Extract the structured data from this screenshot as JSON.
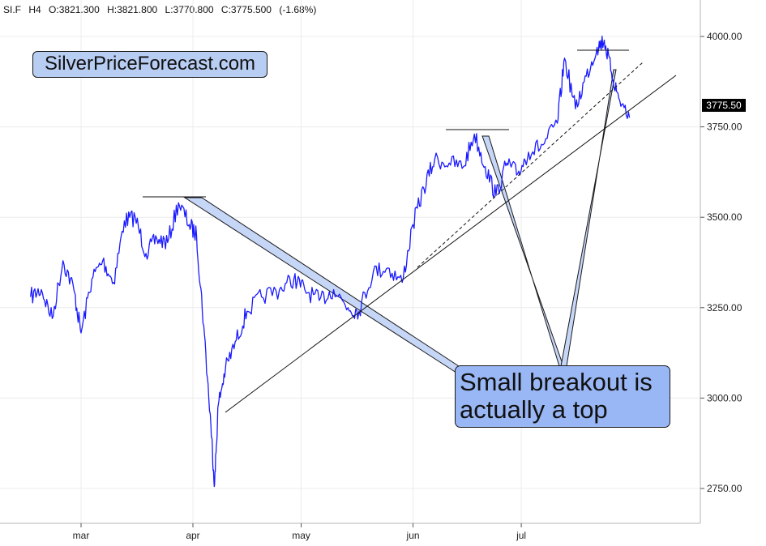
{
  "header": {
    "symbol": "SI.F",
    "timeframe": "H4",
    "open": "O:3821.300",
    "high": "H:3821.800",
    "low": "L:3770.800",
    "close": "C:3775.500",
    "change": "(-1.68%)"
  },
  "brand_label": "SilverPriceForecast.com",
  "callout": {
    "line1": "Small breakout is",
    "line2": "actually a top"
  },
  "last_price_badge": "3775.50",
  "colors": {
    "price_line": "#1a1aff",
    "brand_box": "#b8cdf2",
    "callout_box": "#99b7f5",
    "arrow_fill": "#c6d6f7",
    "grid": "#ececec",
    "badge": "#000000"
  },
  "chart_data": {
    "type": "line",
    "series": [
      {
        "values": [
          {
            "x": "Feb 16",
            "y": 3280
          },
          {
            "x": "Feb 19",
            "y": 3300
          },
          {
            "x": "Feb 22",
            "y": 3220
          },
          {
            "x": "Feb 25",
            "y": 3380
          },
          {
            "x": "Feb 28",
            "y": 3300
          },
          {
            "x": "Mar 1",
            "y": 3180
          },
          {
            "x": "Mar 4",
            "y": 3330
          },
          {
            "x": "Mar 7",
            "y": 3380
          },
          {
            "x": "Mar 10",
            "y": 3320
          },
          {
            "x": "Mar 13",
            "y": 3490
          },
          {
            "x": "Mar 16",
            "y": 3500
          },
          {
            "x": "Mar 19",
            "y": 3400
          },
          {
            "x": "Mar 22",
            "y": 3440
          },
          {
            "x": "Mar 25",
            "y": 3430
          },
          {
            "x": "Mar 28",
            "y": 3540
          },
          {
            "x": "Mar 31",
            "y": 3480
          },
          {
            "x": "Apr 2",
            "y": 3450
          },
          {
            "x": "Apr 4",
            "y": 3200
          },
          {
            "x": "Apr 6",
            "y": 2920
          },
          {
            "x": "Apr 7",
            "y": 2760
          },
          {
            "x": "Apr 8",
            "y": 2980
          },
          {
            "x": "Apr 10",
            "y": 3080
          },
          {
            "x": "Apr 13",
            "y": 3160
          },
          {
            "x": "Apr 16",
            "y": 3240
          },
          {
            "x": "Apr 20",
            "y": 3280
          },
          {
            "x": "Apr 25",
            "y": 3300
          },
          {
            "x": "Apr 29",
            "y": 3330
          },
          {
            "x": "May 2",
            "y": 3300
          },
          {
            "x": "May 6",
            "y": 3270
          },
          {
            "x": "May 10",
            "y": 3300
          },
          {
            "x": "May 14",
            "y": 3250
          },
          {
            "x": "May 17",
            "y": 3240
          },
          {
            "x": "May 21",
            "y": 3350
          },
          {
            "x": "May 25",
            "y": 3360
          },
          {
            "x": "May 29",
            "y": 3320
          },
          {
            "x": "Jun 1",
            "y": 3480
          },
          {
            "x": "Jun 4",
            "y": 3580
          },
          {
            "x": "Jun 7",
            "y": 3660
          },
          {
            "x": "Jun 11",
            "y": 3650
          },
          {
            "x": "Jun 15",
            "y": 3640
          },
          {
            "x": "Jun 18",
            "y": 3730
          },
          {
            "x": "Jun 21",
            "y": 3640
          },
          {
            "x": "Jun 24",
            "y": 3560
          },
          {
            "x": "Jun 27",
            "y": 3650
          },
          {
            "x": "Jun 30",
            "y": 3620
          },
          {
            "x": "Jul 3",
            "y": 3680
          },
          {
            "x": "Jul 7",
            "y": 3700
          },
          {
            "x": "Jul 11",
            "y": 3760
          },
          {
            "x": "Jul 13",
            "y": 3940
          },
          {
            "x": "Jul 16",
            "y": 3800
          },
          {
            "x": "Jul 19",
            "y": 3890
          },
          {
            "x": "Jul 22",
            "y": 3970
          },
          {
            "x": "Jul 24",
            "y": 3990
          },
          {
            "x": "Jul 26",
            "y": 3900
          },
          {
            "x": "Jul 28",
            "y": 3830
          },
          {
            "x": "Jul 31",
            "y": 3775.5
          }
        ]
      }
    ],
    "x_tick_labels": [
      "mar",
      "apr",
      "may",
      "jun",
      "jul"
    ],
    "y_ticks": [
      2750,
      3000,
      3250,
      3500,
      3750,
      4000
    ],
    "y_tick_labels": [
      "2750.00",
      "3000.00",
      "3250.00",
      "3500.00",
      "3750.00",
      "4000.00"
    ],
    "ylim": [
      2640,
      4090
    ],
    "grid": true,
    "y_axis_side": "right"
  }
}
